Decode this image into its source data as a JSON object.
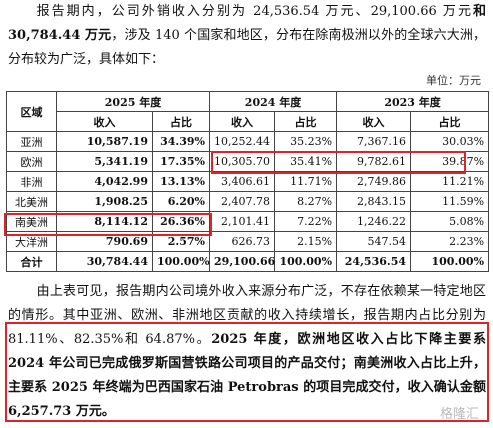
{
  "intro": [
    "报告期内，公司外销收入分别为 24,536.54 万元、29,100.66 万元",
    "和 30,784.44 万元",
    "，涉及 140 个国家和地区，分布在除南极洲以外的全球六大洲，分布较为广泛，具体如下："
  ],
  "unit": "单位：万元",
  "table": {
    "header": [
      "区域",
      "2025 年度",
      "2024 年度",
      "2023 年度"
    ],
    "subheader": [
      "收入",
      "占比",
      "收入",
      "占比",
      "收入",
      "占比"
    ],
    "rows": [
      [
        "亚洲",
        "10,587.19",
        "34.39%",
        "10,252.44",
        "35.23%",
        "7,367.16",
        "30.03%"
      ],
      [
        "欧洲",
        "5,341.19",
        "17.35%",
        "10,305.70",
        "35.41%",
        "9,782.61",
        "39.87%"
      ],
      [
        "非洲",
        "4,042.99",
        "13.13%",
        "3,406.61",
        "11.71%",
        "2,749.86",
        "11.21%"
      ],
      [
        "北美洲",
        "1,908.25",
        "6.20%",
        "2,407.78",
        "8.27%",
        "2,843.15",
        "11.59%"
      ],
      [
        "南美洲",
        "8,114.12",
        "26.36%",
        "2,101.41",
        "7.22%",
        "1,246.22",
        "5.08%"
      ],
      [
        "大洋洲",
        "790.69",
        "2.57%",
        "626.73",
        "2.15%",
        "547.54",
        "2.23%"
      ],
      [
        "合计",
        "30,784.44",
        "100.00%",
        "29,100.66",
        "100.00%",
        "24,536.54",
        "100.00%"
      ]
    ]
  },
  "analysis": [
    "由上表可见，报告期内公司境外收入来源分布广泛，不存在依赖某一特定地区的情形。其中亚洲、欧洲、非洲地区贡献的收入持续增长，报告期内占比分别为 81.11%、82.35%和 64.87%。",
    "2025 年度，欧洲地区收入占比下降主要系 2024 年公司已完成俄罗斯国营铁路公司项目的产品交付；南美洲收入占比上升，主要系 2025 年终端为巴西国家石油 Petrobras 的项目完成交付，收入确认金额 6,257.73 万元。"
  ],
  "watermark": "格隆汇"
}
